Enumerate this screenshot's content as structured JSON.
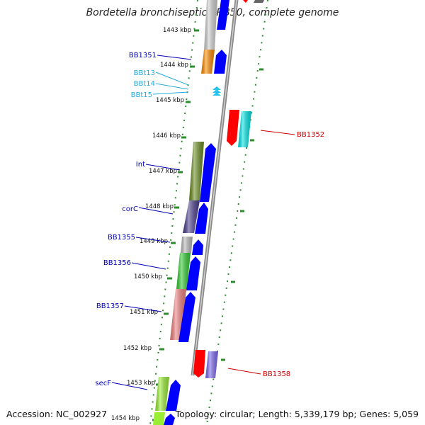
{
  "title": "Bordetella bronchiseptica RB50, complete genome",
  "footer": {
    "accession": "Accession: NC_002927",
    "summary": "Topology: circular; Length: 5,339,179 bp; Genes: 5,059"
  },
  "colors": {
    "backbone": "#7a7a7a",
    "tick": "#2e8b2e",
    "forward_gene_label": "#0000b0",
    "reverse_gene_label": "#cc0000",
    "trna_label": "#22aadd",
    "forward_cds": "#0000ff",
    "reverse_cds": "#ff0000"
  },
  "ruler": [
    "1443 kbp",
    "1444 kbp",
    "1445 kbp",
    "1446 kbp",
    "1447 kbp",
    "1448 kbp",
    "1449 kbp",
    "1450 kbp",
    "1451 kbp",
    "1452 kbp",
    "1453 kbp",
    "1454 kbp"
  ],
  "genes": [
    {
      "label": "BB1351",
      "strand": "forward",
      "category_color": "#ff8c00"
    },
    {
      "label": "BBt13",
      "strand": "forward",
      "category_color": "#22bbe0",
      "type": "tRNA"
    },
    {
      "label": "BBt14",
      "strand": "forward",
      "category_color": "#22bbe0",
      "type": "tRNA"
    },
    {
      "label": "BBt15",
      "strand": "forward",
      "category_color": "#22bbe0",
      "type": "tRNA"
    },
    {
      "label": "BB1352",
      "strand": "reverse",
      "category_color": "#00e5e5"
    },
    {
      "label": "Int",
      "strand": "forward",
      "category_color": "#6b8e23"
    },
    {
      "label": "corC",
      "strand": "forward",
      "category_color": "#4b3f8c"
    },
    {
      "label": "BB1355",
      "strand": "forward",
      "category_color": "#bbbbbb"
    },
    {
      "label": "BB1356",
      "strand": "forward",
      "category_color": "#33cc33"
    },
    {
      "label": "BB1357",
      "strand": "forward",
      "category_color": "#f08080"
    },
    {
      "label": "BB1358",
      "strand": "reverse",
      "category_color": "#7b68ee"
    },
    {
      "label": "secF",
      "strand": "forward",
      "category_color": "#99ee33"
    }
  ]
}
